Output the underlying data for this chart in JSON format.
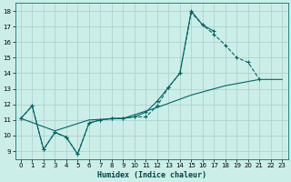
{
  "xlabel": "Humidex (Indice chaleur)",
  "bg_color": "#cceee8",
  "grid_color": "#aacccc",
  "line_color": "#006666",
  "xlim": [
    -0.5,
    23.5
  ],
  "ylim": [
    8.5,
    18.5
  ],
  "xticks": [
    0,
    1,
    2,
    3,
    4,
    5,
    6,
    7,
    8,
    9,
    10,
    11,
    12,
    13,
    14,
    15,
    16,
    17,
    18,
    19,
    20,
    21,
    22,
    23
  ],
  "yticks": [
    9,
    10,
    11,
    12,
    13,
    14,
    15,
    16,
    17,
    18
  ],
  "line1_x": [
    0,
    1,
    2,
    3,
    4,
    5,
    6,
    7,
    8,
    9,
    10,
    11,
    12,
    13,
    14,
    15,
    16,
    17,
    18,
    19,
    20,
    21
  ],
  "line1_y": [
    11.1,
    11.9,
    9.1,
    10.2,
    9.9,
    8.8,
    10.8,
    11.0,
    11.1,
    11.1,
    11.2,
    11.2,
    11.9,
    13.1,
    14.0,
    17.9,
    17.1,
    16.5,
    15.8,
    15.0,
    14.7,
    13.6
  ],
  "line2_x": [
    0,
    1,
    2,
    3,
    4,
    5,
    6,
    7,
    8,
    9,
    10,
    11,
    12,
    13,
    14,
    15,
    16,
    17
  ],
  "line2_y": [
    11.1,
    11.9,
    9.1,
    10.2,
    9.9,
    8.8,
    10.8,
    11.0,
    11.1,
    11.1,
    11.2,
    11.5,
    12.2,
    13.1,
    14.0,
    18.0,
    17.1,
    16.7
  ],
  "line3_x": [
    0,
    3,
    6,
    9,
    12,
    15,
    18,
    21,
    23
  ],
  "line3_y": [
    11.1,
    10.3,
    11.0,
    11.1,
    11.8,
    12.6,
    13.2,
    13.6,
    13.6
  ]
}
